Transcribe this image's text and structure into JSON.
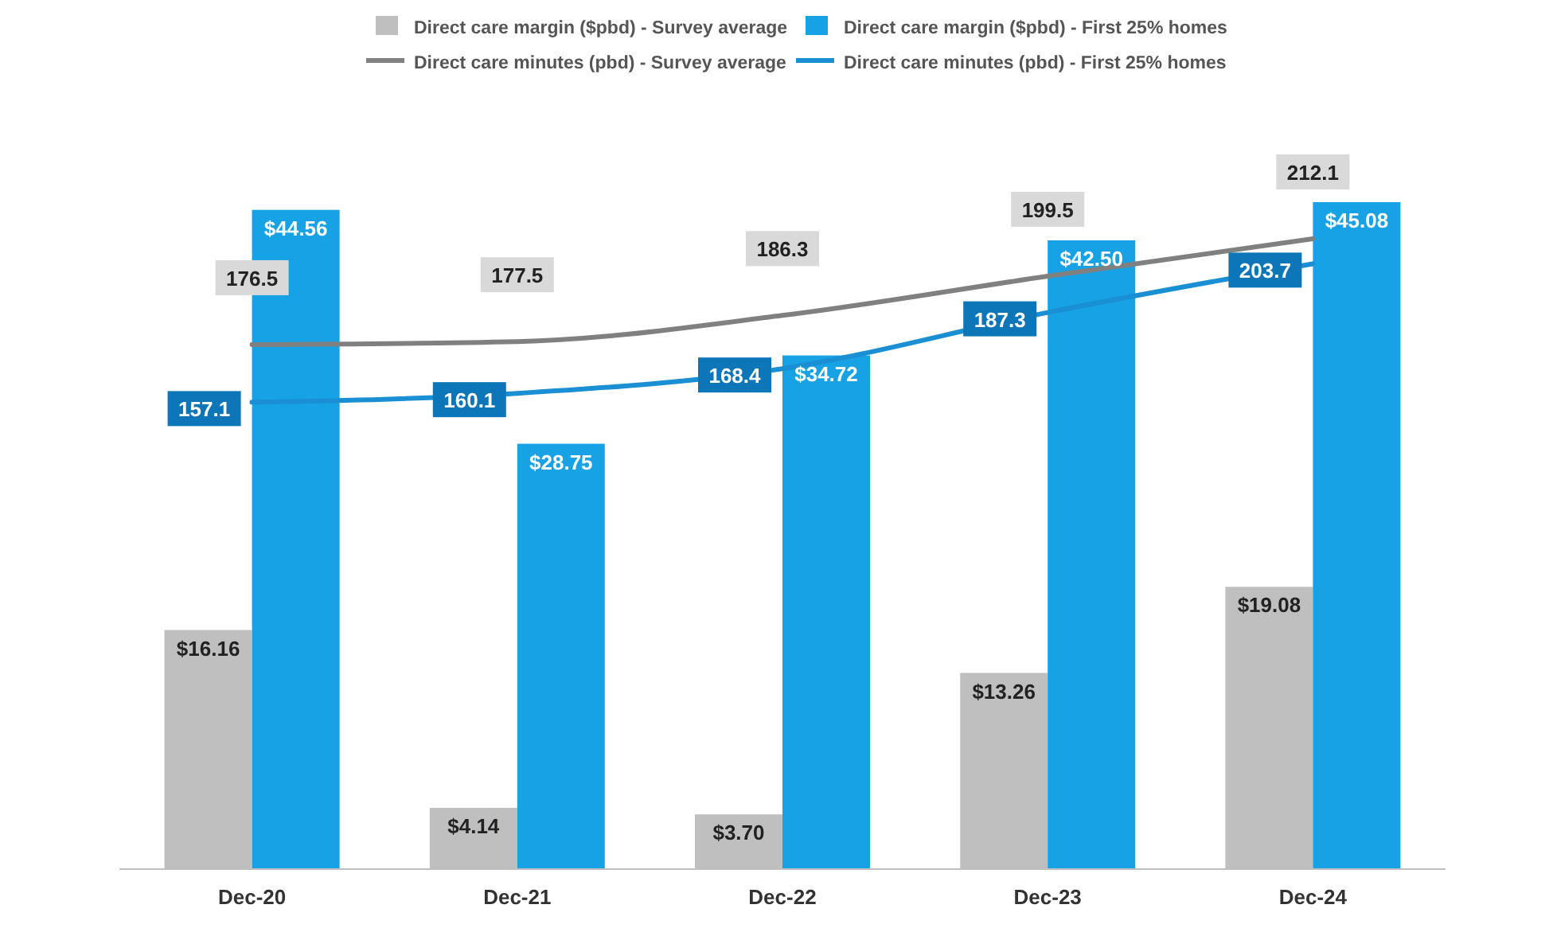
{
  "chart_data": {
    "type": "bar",
    "categories": [
      "Dec-20",
      "Dec-21",
      "Dec-22",
      "Dec-23",
      "Dec-24"
    ],
    "series": [
      {
        "name": "Direct care margin ($pbd) - Survey average",
        "color": "#bfbfbf",
        "values": [
          16.16,
          4.14,
          3.7,
          13.26,
          19.08
        ],
        "value_labels": [
          "$16.16",
          "$4.14",
          "$3.70",
          "$13.26",
          "$19.08"
        ]
      },
      {
        "name": "Direct care margin ($pbd) - First 25% homes",
        "color": "#17a2e6",
        "values": [
          44.56,
          28.75,
          34.72,
          42.5,
          45.08
        ],
        "value_labels": [
          "$44.56",
          "$28.75",
          "$34.72",
          "$42.50",
          "$45.08"
        ]
      },
      {
        "name": "Direct care minutes (pbd) - Survey average",
        "type": "line",
        "axis": "y2",
        "color": "#808080",
        "values": [
          176.5,
          177.5,
          186.3,
          199.5,
          212.1
        ]
      },
      {
        "name": "Direct care minutes (pbd) - First 25% homes",
        "type": "line",
        "axis": "y2",
        "color": "#1a8fd3",
        "values": [
          157.1,
          160.1,
          168.4,
          187.3,
          203.7
        ]
      }
    ],
    "tick_labels": "x",
    "data_labels": true,
    "legend": "top"
  }
}
